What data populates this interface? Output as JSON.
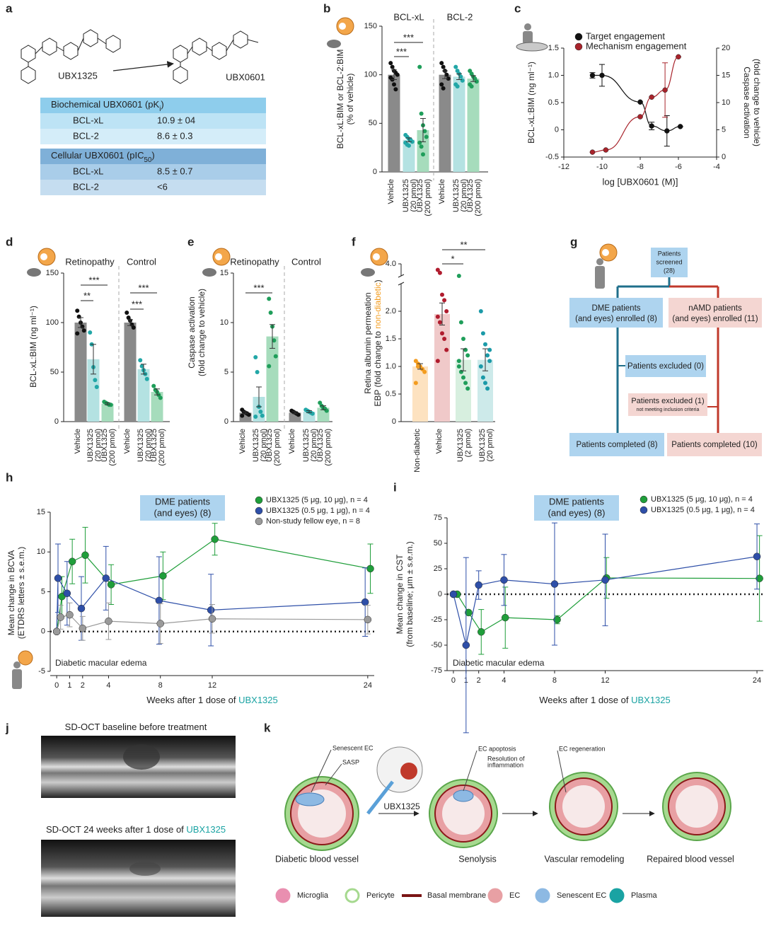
{
  "panel_labels": [
    "a",
    "b",
    "c",
    "d",
    "e",
    "f",
    "g",
    "h",
    "i",
    "j",
    "k"
  ],
  "panel_a": {
    "compounds": [
      "UBX1325",
      "UBX0601"
    ],
    "tables": [
      {
        "header": [
          "Biochemical UBX0601 (pK",
          "i",
          ")"
        ],
        "rows": [
          [
            "BCL-xL",
            "10.9 ± 04"
          ],
          [
            "BCL-2",
            "8.6 ± 0.3"
          ]
        ]
      },
      {
        "header": [
          "Cellular UBX0601 (pIC",
          "50",
          ")"
        ],
        "rows": [
          [
            "BCL-xL",
            "8.5 ± 0.7"
          ],
          [
            "BCL-2",
            "<6"
          ]
        ]
      }
    ]
  },
  "chart_data": [
    {
      "type": "bar",
      "groups": [
        "BCL-xL",
        "BCL-2"
      ],
      "categories": [
        "Vehicle",
        "UBX1325",
        "UBX1325",
        "Vehicle",
        "UBX1325",
        "UBX1325"
      ],
      "doses": [
        null,
        "(20 pmol)",
        "(200 pmol)",
        null,
        "(20 pmol)",
        "(200 pmol)"
      ],
      "ylabel": [
        "BCL-xL:BIM or BCL-2:BIM",
        "(% of vehicle)"
      ],
      "ylim": [
        0,
        150
      ],
      "yticks": [
        0,
        50,
        100,
        150
      ],
      "values": [
        100,
        33,
        43,
        100,
        98,
        96
      ],
      "errors": [
        5,
        2,
        12,
        4,
        3,
        3
      ],
      "points": [
        [
          112,
          108,
          104,
          102,
          100,
          97,
          95,
          90,
          85
        ],
        [
          38,
          36,
          34,
          33,
          31,
          30,
          28,
          27
        ],
        [
          108,
          60,
          48,
          42,
          36,
          30,
          26,
          18
        ],
        [
          112,
          108,
          104,
          100,
          96,
          90,
          86
        ],
        [
          108,
          104,
          101,
          98,
          94,
          90,
          88
        ],
        [
          104,
          101,
          98,
          96,
          93,
          90,
          88
        ]
      ],
      "colors": [
        "#8a8a8a",
        "#b4e2e2",
        "#a6dcbc",
        "#8a8a8a",
        "#b4e2e2",
        "#a6dcbc"
      ],
      "point_colors": [
        "#111111",
        "#22a7a7",
        "#1f9e5a",
        "#111111",
        "#22a7a7",
        "#1f9e5a"
      ],
      "label_colors": [
        "#222222",
        "#1aa3a3",
        "#1aa3a3",
        "#222222",
        "#1aa3a3",
        "#1aa3a3"
      ],
      "significance": [
        "***",
        "***"
      ],
      "significance_color": "#e0303a"
    },
    {
      "type": "scatter",
      "xlabel": "log [UBX0601 (M)]",
      "ylabel": [
        "BCL-xL:BIM (ng ml⁻¹)"
      ],
      "y2label": [
        "Caspase activation",
        "(fold change to vehicle)"
      ],
      "xlim": [
        -12,
        -4
      ],
      "xticks": [
        -12,
        -10,
        -8,
        -6,
        -4
      ],
      "ylim": [
        -0.5,
        1.5
      ],
      "yticks": [
        -0.5,
        0,
        0.5,
        {
          "value": 1,
          "label": "1.0"
        },
        1.5
      ],
      "y2lim": [
        0,
        20
      ],
      "y2ticks": [
        0,
        5,
        10,
        15,
        20
      ],
      "series": [
        {
          "name": "Target engagement",
          "color": "#111111",
          "x": [
            -10.5,
            -10,
            -8,
            -7.4,
            -6.6,
            -5.9
          ],
          "y": [
            1.0,
            1.0,
            0.51,
            0.07,
            -0.02,
            0.06
          ],
          "errors": [
            0.05,
            0.2,
            0,
            0.07,
            0.28,
            0
          ]
        },
        {
          "name": "Mechanism engagement",
          "color": "#a8232b",
          "axis": "y2",
          "x": [
            -10.5,
            -9.8,
            -8,
            -7.4,
            -6.7,
            -6
          ],
          "y": [
            0.9,
            1.3,
            7.4,
            11,
            12.3,
            18.4
          ],
          "errors": [
            0,
            0,
            0,
            0,
            5,
            0
          ]
        }
      ]
    },
    {
      "type": "bar",
      "groups": [
        "Retinopathy",
        "Control"
      ],
      "categories": [
        "Vehicle",
        "UBX1325",
        "UBX1325",
        "Vehicle",
        "UBX1325",
        "UBX1325"
      ],
      "doses": [
        null,
        "(20 pmol)",
        "(200 pmol)",
        null,
        "(20 pmol)",
        "(200 pmol)"
      ],
      "ylabel": [
        "BCL-xL:BIM (ng ml⁻¹)"
      ],
      "ylim": [
        0,
        150
      ],
      "yticks": [
        0,
        50,
        100,
        150
      ],
      "values": [
        100,
        63,
        18,
        100,
        53,
        30
      ],
      "errors": [
        5,
        15,
        1,
        3,
        5,
        3
      ],
      "points": [
        [
          112,
          106,
          100,
          96,
          92,
          89
        ],
        [
          90,
          78,
          55,
          42,
          35
        ],
        [
          20,
          19,
          18,
          17,
          17
        ],
        [
          110,
          105,
          102,
          98,
          95
        ],
        [
          62,
          56,
          52,
          48,
          43
        ],
        [
          36,
          32,
          30,
          27,
          24
        ]
      ],
      "colors": [
        "#8a8a8a",
        "#b4e2e2",
        "#a6dcbc",
        "#8a8a8a",
        "#b4e2e2",
        "#a6dcbc"
      ],
      "point_colors": [
        "#111111",
        "#22a7a7",
        "#1f9e5a",
        "#111111",
        "#22a7a7",
        "#1f9e5a"
      ],
      "label_colors": [
        "#222222",
        "#1aa3a3",
        "#1aa3a3",
        "#222222",
        "#1aa3a3",
        "#1aa3a3"
      ],
      "significance": [
        "***",
        "**",
        "***",
        "***"
      ],
      "significance_color": "#e0303a"
    },
    {
      "type": "bar",
      "groups": [
        "Retinopathy",
        "Control"
      ],
      "categories": [
        "Vehicle",
        "UBX1325",
        "UBX1325",
        "Vehicle",
        "UBX1325",
        "UBX1325"
      ],
      "doses": [
        null,
        "(20 pmol)",
        "(200 pmol)",
        null,
        "(20 pmol)",
        "(200 pmol)"
      ],
      "ylabel": [
        "Caspase activation",
        "(fold change to vehicle)"
      ],
      "ylim": [
        0,
        15
      ],
      "yticks": [
        0,
        5,
        10,
        15
      ],
      "values": [
        0.9,
        2.5,
        8.6,
        0.9,
        1.0,
        1.4
      ],
      "errors": [
        0.1,
        1.0,
        1.2,
        0.1,
        0.1,
        0.2
      ],
      "points": [
        [
          1.2,
          1.0,
          0.9,
          0.8,
          0.7,
          0.6
        ],
        [
          6.5,
          5,
          1.5,
          1,
          0.6,
          0.5
        ],
        [
          12.4,
          11,
          9.6,
          8.2,
          6.6,
          5.6
        ],
        [
          1.1,
          1.0,
          0.9,
          0.8,
          0.7
        ],
        [
          1.2,
          1.1,
          1.0,
          0.9,
          0.8
        ],
        [
          1.9,
          1.6,
          1.4,
          1.3,
          1.1
        ]
      ],
      "colors": [
        "#8a8a8a",
        "#b4e2e2",
        "#a6dcbc",
        "#8a8a8a",
        "#b4e2e2",
        "#a6dcbc"
      ],
      "point_colors": [
        "#111111",
        "#22a7a7",
        "#1f9e5a",
        "#111111",
        "#22a7a7",
        "#1f9e5a"
      ],
      "label_colors": [
        "#222222",
        "#1aa3a3",
        "#1aa3a3",
        "#222222",
        "#1aa3a3",
        "#1aa3a3"
      ],
      "significance": [
        "***"
      ],
      "significance_color": "#e0303a"
    },
    {
      "type": "bar",
      "categories": [
        "Non-diabetic",
        "Vehicle",
        "UBX1325",
        "UBX1325"
      ],
      "doses": [
        null,
        null,
        "(2 pmol)",
        "(20 pmol)"
      ],
      "ylabel": [
        [
          "Retina albumin permeation"
        ],
        [
          "EBP (fold change to ",
          "non-diabetic",
          ")"
        ]
      ],
      "ylim": [
        0,
        4.0
      ],
      "ybreak": [
        2.5,
        3.8
      ],
      "yticks": [
        0,
        0.5,
        {
          "value": 1,
          "label": "1.0"
        },
        1.5,
        {
          "value": 2,
          "label": "2.0"
        },
        {
          "value": 4,
          "label": "4.0"
        }
      ],
      "values": [
        1.0,
        1.95,
        1.12,
        1.12
      ],
      "errors": [
        0.05,
        0.2,
        0.2,
        0.2
      ],
      "points": [
        [
          1.1,
          1.05,
          1.0,
          0.95,
          0.9,
          0.7,
          1.0
        ],
        [
          3.9,
          3.85,
          2.3,
          2.2,
          2.0,
          1.9,
          1.8,
          1.6,
          1.5,
          1.3,
          1.1
        ],
        [
          3.8,
          1.8,
          1.5,
          1.3,
          1.2,
          1.0,
          0.9,
          0.8,
          0.7,
          0.6,
          1.1
        ],
        [
          2.0,
          1.6,
          1.4,
          1.2,
          1.1,
          1.0,
          0.8,
          0.7,
          0.6,
          1.3
        ]
      ],
      "colors": [
        "#fde2c0",
        "#f0c9c9",
        "#d7efdf",
        "#cdeaea"
      ],
      "point_colors": [
        "#f39c1f",
        "#b01c2e",
        "#1f9e5a",
        "#1b9aa8"
      ],
      "label_colors": [
        "#f39c1f",
        "#c0262e",
        "#1aa3a3",
        "#1aa3a3"
      ],
      "significance": [
        "**",
        "*"
      ],
      "significance_color": "#e0303a"
    },
    {
      "type": "line",
      "xlabel": [
        "Weeks after 1 dose of ",
        "UBX1325"
      ],
      "ylabel": [
        "Mean change in BCVA",
        "(ETDRS letters ± s.e.m.)"
      ],
      "box": [
        "DME patients",
        "(and eyes) (8)"
      ],
      "annotation": "Diabetic macular edema",
      "xlim": [
        -0.5,
        24.5
      ],
      "xticks": [
        0,
        1,
        2,
        4,
        8,
        12,
        24
      ],
      "ylim": [
        -5,
        15
      ],
      "yticks": [
        -5,
        0,
        5,
        10,
        15
      ],
      "series": [
        {
          "name": "UBX1325 (5 μg, 10 μg), n = 4",
          "color": "#1f9e3a",
          "x": [
            0,
            0.4,
            1.2,
            2.2,
            4.2,
            8.2,
            12.2,
            24.2
          ],
          "y": [
            0,
            4.4,
            8.8,
            9.6,
            5.9,
            7,
            11.6,
            7.9
          ],
          "errors": [
            0,
            2.5,
            2.8,
            3.5,
            2.5,
            3,
            2,
            3.1
          ]
        },
        {
          "name": "UBX1325 (0.5 μg, 1 μg), n = 4",
          "color": "#2e4fa8",
          "x": [
            0,
            0.1,
            0.8,
            1.9,
            3.8,
            7.9,
            11.9,
            23.8
          ],
          "y": [
            0,
            6.7,
            4.8,
            2.9,
            6.7,
            3.9,
            2.7,
            3.7
          ],
          "errors": [
            0,
            4.3,
            4,
            4,
            4,
            5.5,
            4.5,
            4.3
          ]
        },
        {
          "name": "Non-study fellow eye, n = 8",
          "color": "#9a9a9a",
          "x": [
            0,
            0.3,
            1,
            2,
            4,
            8,
            12,
            24
          ],
          "y": [
            0,
            1.8,
            2.1,
            0.4,
            1.3,
            1,
            1.6,
            1.5
          ],
          "errors": [
            0,
            1.5,
            1.5,
            1.5,
            2.3,
            2.5,
            1.8,
            1.8
          ]
        }
      ]
    },
    {
      "type": "line",
      "xlabel": [
        "Weeks after 1 dose of ",
        "UBX1325"
      ],
      "ylabel": [
        "Mean change in CST",
        "(from baseline; μm ± s.e.m.)"
      ],
      "box": [
        "DME patients",
        "(and eyes) (8)"
      ],
      "annotation": "Diabetic macular edema",
      "xlim": [
        -0.5,
        24.5
      ],
      "xticks": [
        0,
        1,
        2,
        4,
        8,
        12,
        24
      ],
      "ylim": [
        -75,
        75
      ],
      "yticks": [
        -75,
        -50,
        -25,
        0,
        25,
        50,
        75
      ],
      "series": [
        {
          "name": "UBX1325 (5 μg, 10 μg), n = 4",
          "color": "#1f9e3a",
          "x": [
            0,
            0.3,
            1.2,
            2.2,
            4.1,
            8.2,
            12.1,
            24.2
          ],
          "y": [
            0,
            0,
            -18,
            -37,
            -23,
            -25,
            16,
            15.5
          ],
          "errors": [
            0,
            0,
            0,
            22,
            30,
            4,
            20,
            42
          ]
        },
        {
          "name": "UBX1325 (0.5 μg, 1 μg), n = 4",
          "color": "#2e4fa8",
          "x": [
            0,
            1,
            2,
            4,
            8,
            12,
            24
          ],
          "y": [
            0,
            -50,
            9,
            14,
            10,
            14,
            37
          ],
          "errors": [
            0,
            86,
            14,
            25,
            60,
            45,
            32
          ]
        }
      ]
    }
  ],
  "diagram_g": {
    "screened": [
      "Patients",
      "screened",
      "(28)"
    ],
    "enrolled": [
      [
        "DME patients",
        "(and eyes) enrolled (8)"
      ],
      [
        "nAMD patients",
        "(and eyes) enrolled (11)"
      ]
    ],
    "excluded": [
      [
        "Patients excluded (0)"
      ],
      [
        "Patients excluded (1)",
        "not meeting inclusion criteria"
      ]
    ],
    "completed": [
      "Patients completed (8)",
      "Patients completed (10)"
    ]
  },
  "panel_j": {
    "titles": [
      [
        "SD-OCT baseline before treatment"
      ],
      [
        "SD-OCT 24 weeks after 1 dose of ",
        "UBX1325"
      ]
    ]
  },
  "diagram_k": {
    "callouts": [
      "Senescent EC",
      "SASP",
      "EC apoptosis",
      "Resolution of",
      "inflammation",
      "EC regeneration"
    ],
    "drug": "UBX1325",
    "stages": [
      "Diabetic blood vessel",
      "Senolysis",
      "Vascular remodeling",
      "Repaired blood vessel"
    ],
    "legend": [
      "Microglia",
      "Pericyte",
      "Basal membrane",
      "EC",
      "Senescent EC",
      "Plasma"
    ]
  }
}
